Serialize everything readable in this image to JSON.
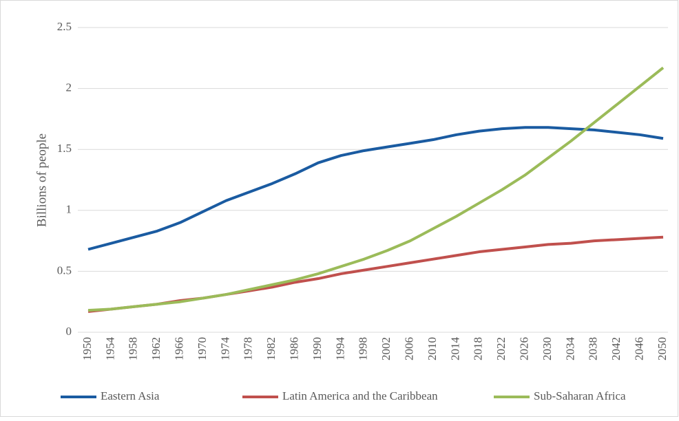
{
  "chart_data": {
    "type": "line",
    "ylabel": "Billions of people",
    "x": [
      1950,
      1954,
      1958,
      1962,
      1966,
      1970,
      1974,
      1978,
      1982,
      1986,
      1990,
      1994,
      1998,
      2002,
      2006,
      2010,
      2014,
      2018,
      2022,
      2026,
      2030,
      2034,
      2038,
      2042,
      2046,
      2050
    ],
    "xlim": [
      1950,
      2050
    ],
    "ylim": [
      0,
      2.5
    ],
    "yticks": [
      0,
      0.5,
      1,
      1.5,
      2,
      2.5
    ],
    "grid": true,
    "legend": "bottom",
    "series": [
      {
        "name": "Eastern Asia",
        "color": "#1a5ba1",
        "values": [
          0.68,
          0.73,
          0.78,
          0.83,
          0.9,
          0.99,
          1.08,
          1.15,
          1.22,
          1.3,
          1.39,
          1.45,
          1.49,
          1.52,
          1.55,
          1.58,
          1.62,
          1.65,
          1.67,
          1.68,
          1.68,
          1.67,
          1.66,
          1.64,
          1.62,
          1.59
        ]
      },
      {
        "name": "Latin America and the Caribbean",
        "color": "#c0504d",
        "values": [
          0.17,
          0.19,
          0.21,
          0.23,
          0.26,
          0.28,
          0.31,
          0.34,
          0.37,
          0.41,
          0.44,
          0.48,
          0.51,
          0.54,
          0.57,
          0.6,
          0.63,
          0.66,
          0.68,
          0.7,
          0.72,
          0.73,
          0.75,
          0.76,
          0.77,
          0.78
        ]
      },
      {
        "name": "Sub-Saharan Africa",
        "color": "#9bbb59",
        "values": [
          0.18,
          0.19,
          0.21,
          0.23,
          0.25,
          0.28,
          0.31,
          0.35,
          0.39,
          0.43,
          0.48,
          0.54,
          0.6,
          0.67,
          0.75,
          0.85,
          0.95,
          1.06,
          1.17,
          1.29,
          1.43,
          1.57,
          1.72,
          1.87,
          2.02,
          2.17
        ]
      }
    ]
  }
}
